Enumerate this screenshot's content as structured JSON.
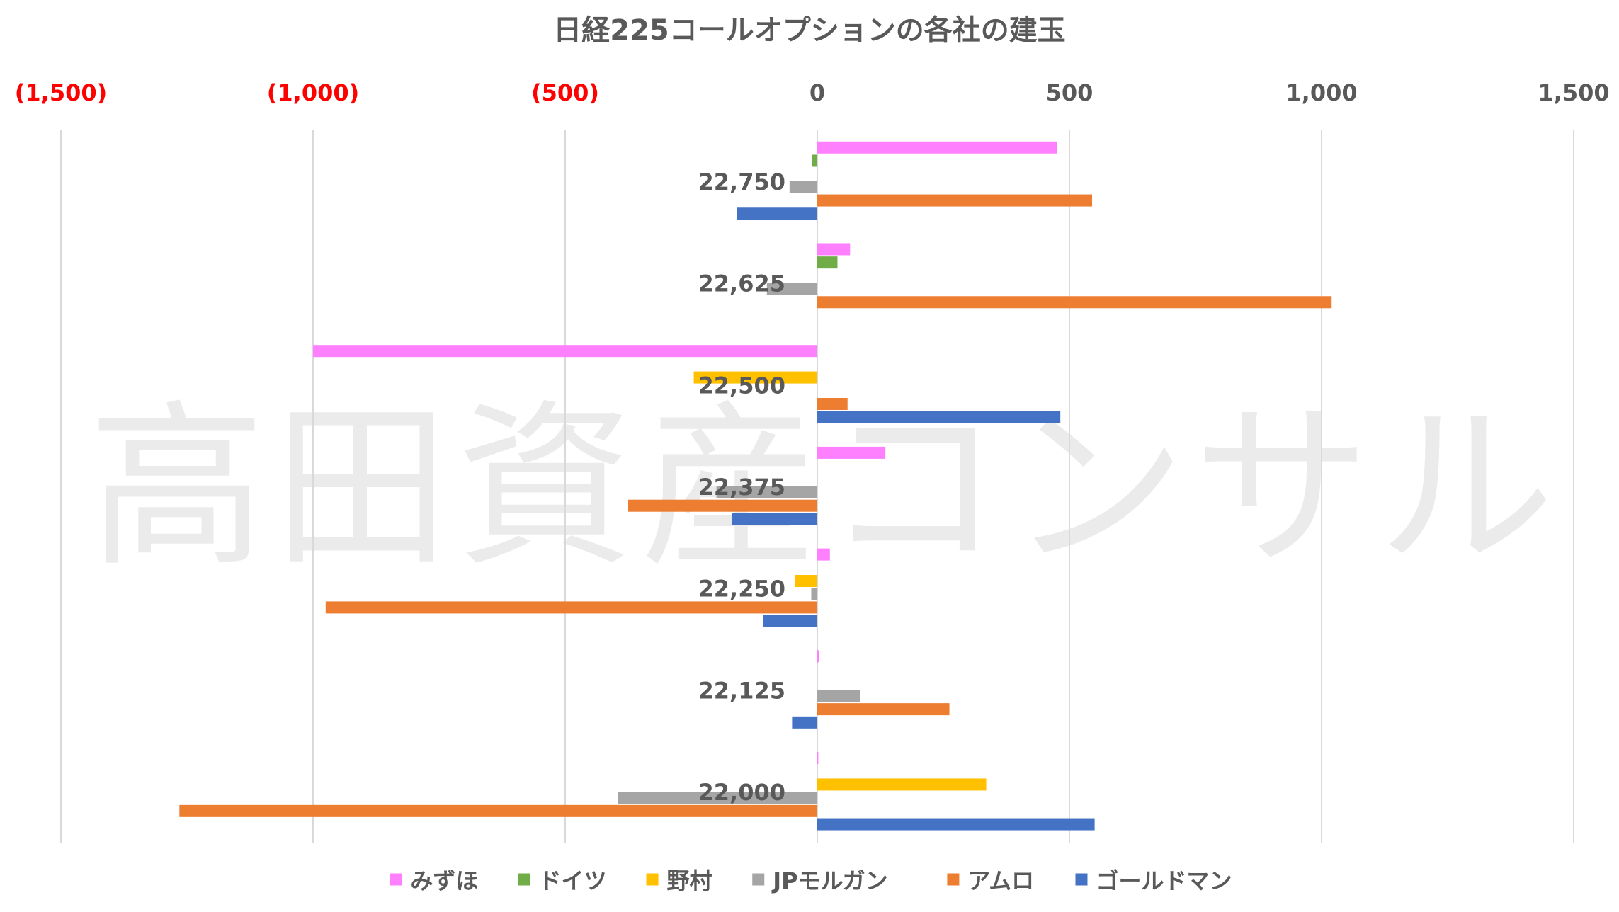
{
  "chart_data": {
    "type": "bar",
    "orientation": "horizontal",
    "title": "日経225コールオプションの各社の建玉",
    "watermark": "高田資産コンサル",
    "xlim": [
      -1500,
      1500
    ],
    "xticks": [
      {
        "value": -1500,
        "label": "(1,500)"
      },
      {
        "value": -1000,
        "label": "(1,000)"
      },
      {
        "value": -500,
        "label": "(500)"
      },
      {
        "value": 0,
        "label": "0"
      },
      {
        "value": 500,
        "label": "500"
      },
      {
        "value": 1000,
        "label": "1,000"
      },
      {
        "value": 1500,
        "label": "1,500"
      }
    ],
    "x_axis_position": "top",
    "negative_tick_color": "#ff0000",
    "grid": "vertical",
    "legend_position": "bottom",
    "categories": [
      "22,750",
      "22,625",
      "22,500",
      "22,375",
      "22,250",
      "22,125",
      "22,000"
    ],
    "series": [
      {
        "name": "みずほ",
        "color": "#ff80ff",
        "values": [
          475,
          65,
          -1000,
          135,
          25,
          3,
          2
        ]
      },
      {
        "name": "ドイツ",
        "color": "#70ad47",
        "values": [
          -10,
          40,
          0,
          0,
          0,
          0,
          0
        ]
      },
      {
        "name": "野村",
        "color": "#ffc000",
        "values": [
          0,
          0,
          -245,
          0,
          -45,
          0,
          335
        ]
      },
      {
        "name": "JPモルガン",
        "color": "#a5a5a5",
        "values": [
          -55,
          -100,
          0,
          -200,
          -12,
          85,
          -395
        ]
      },
      {
        "name": "アムロ",
        "color": "#ed7d31",
        "values": [
          545,
          1020,
          60,
          -375,
          -975,
          262,
          -1265
        ]
      },
      {
        "name": "ゴールドマン",
        "color": "#4472c4",
        "values": [
          -160,
          0,
          482,
          -170,
          -108,
          -50,
          550
        ]
      }
    ]
  }
}
